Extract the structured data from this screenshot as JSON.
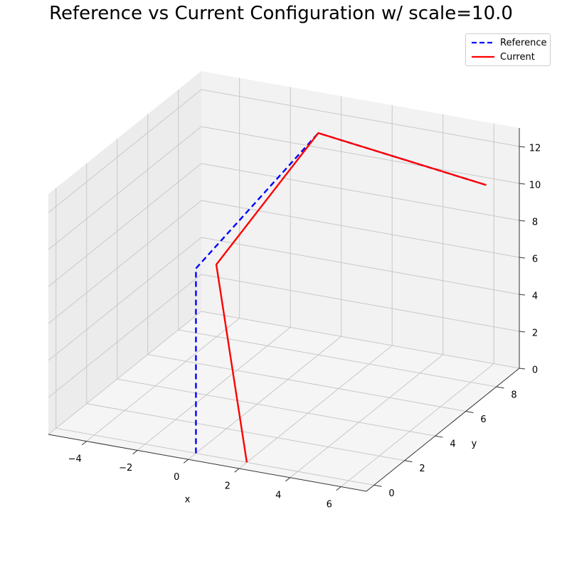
{
  "chart_data": {
    "type": "line",
    "title": "Reference vs Current Configuration w/ scale=10.0",
    "xlabel": "x",
    "ylabel": "y",
    "zlabel": "",
    "xlim": [
      -5.5,
      7
    ],
    "ylim": [
      -0.5,
      9.5
    ],
    "zlim": [
      0,
      13
    ],
    "xticks": [
      -4,
      -2,
      0,
      2,
      4,
      6
    ],
    "yticks": [
      0,
      2,
      4,
      6,
      8
    ],
    "zticks": [
      0,
      2,
      4,
      6,
      8,
      10,
      12
    ],
    "grid": true,
    "legend_position": "top-right",
    "series": [
      {
        "name": "Reference",
        "color": "#0000ff",
        "linestyle": "dashed",
        "points": [
          {
            "x": 0,
            "y": 0,
            "z": 0
          },
          {
            "x": 0,
            "y": 0,
            "z": 10
          },
          {
            "x": 0,
            "y": 8,
            "z": 12
          },
          {
            "x": 6,
            "y": 9,
            "z": 10
          }
        ]
      },
      {
        "name": "Current",
        "color": "#ff0000",
        "linestyle": "solid",
        "points": [
          {
            "x": 2,
            "y": 0,
            "z": 0
          },
          {
            "x": 0.5,
            "y": 0.5,
            "z": 10
          },
          {
            "x": 0,
            "y": 8,
            "z": 12
          },
          {
            "x": 6,
            "y": 9,
            "z": 10
          }
        ]
      }
    ]
  }
}
